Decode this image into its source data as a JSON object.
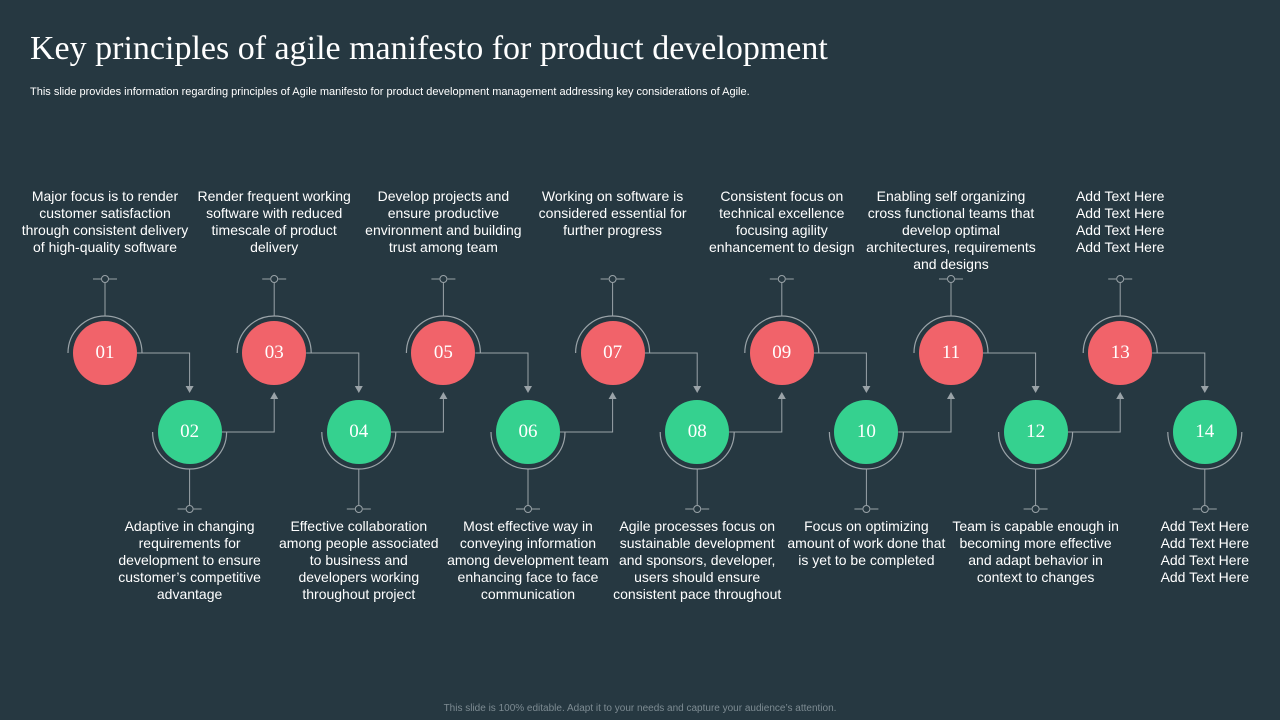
{
  "slide": {
    "title": "Key principles of agile manifesto for product development",
    "subtitle": "This slide provides information regarding principles of Agile manifesto for product development management addressing key considerations of Agile.",
    "footer": "This slide is 100% editable. Adapt it to your needs and capture your audience’s attention."
  },
  "colors": {
    "background": "#263841",
    "top_circle": "#f1636a",
    "bottom_circle": "#35d18f",
    "connector": "#9aa3a8"
  },
  "steps": [
    {
      "number": "01",
      "text": "Major focus is to render customer satisfaction through consistent delivery of high-quality software"
    },
    {
      "number": "02",
      "text": "Adaptive in changing requirements for development to ensure customer’s competitive advantage"
    },
    {
      "number": "03",
      "text": "Render frequent working software with reduced timescale of product delivery"
    },
    {
      "number": "04",
      "text": "Effective collaboration among people associated to business and developers working throughout project"
    },
    {
      "number": "05",
      "text": "Develop projects and ensure productive environment and building trust among team"
    },
    {
      "number": "06",
      "text": "Most effective way in conveying information among development team enhancing face to face communication"
    },
    {
      "number": "07",
      "text": "Working on software is considered essential for further progress"
    },
    {
      "number": "08",
      "text": "Agile processes focus on sustainable development and sponsors, developer, users should ensure consistent pace throughout"
    },
    {
      "number": "09",
      "text": "Consistent focus on technical excellence focusing agility enhancement to design"
    },
    {
      "number": "10",
      "text": "Focus on optimizing amount of work done that is yet to be completed"
    },
    {
      "number": "11",
      "text": "Enabling self organizing cross functional teams that develop optimal architectures, requirements and designs"
    },
    {
      "number": "12",
      "text": "Team is capable enough in becoming more effective and adapt behavior in context to changes"
    },
    {
      "number": "13",
      "text": "Add Text Here Add Text Here Add Text Here Add Text Here"
    },
    {
      "number": "14",
      "text": "Add Text Here Add Text Here Add Text Here Add Text Here"
    }
  ]
}
